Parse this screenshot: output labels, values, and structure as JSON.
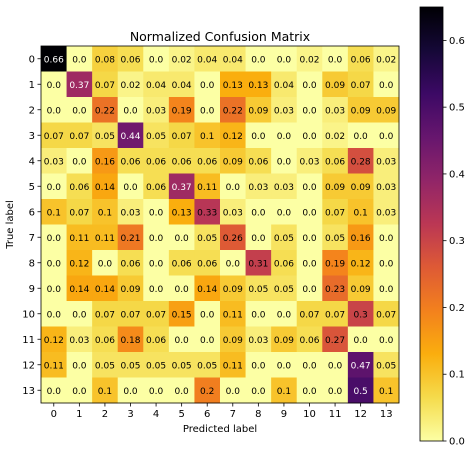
{
  "chart_data": {
    "type": "heatmap",
    "title": "Normalized Confusion Matrix",
    "xlabel": "Predicted label",
    "ylabel": "True label",
    "x_categories": [
      "0",
      "1",
      "2",
      "3",
      "4",
      "5",
      "6",
      "7",
      "8",
      "9",
      "10",
      "11",
      "12",
      "13"
    ],
    "y_categories": [
      "0",
      "1",
      "2",
      "3",
      "4",
      "5",
      "6",
      "7",
      "8",
      "9",
      "10",
      "11",
      "12",
      "13"
    ],
    "matrix": [
      [
        "0.66",
        "0.0",
        "0.08",
        "0.06",
        "0.0",
        "0.02",
        "0.04",
        "0.04",
        "0.0",
        "0.0",
        "0.02",
        "0.0",
        "0.06",
        "0.02"
      ],
      [
        "0.0",
        "0.37",
        "0.07",
        "0.02",
        "0.04",
        "0.04",
        "0.0",
        "0.13",
        "0.13",
        "0.04",
        "0.0",
        "0.09",
        "0.07",
        "0.0"
      ],
      [
        "0.0",
        "0.0",
        "0.22",
        "0.0",
        "0.03",
        "0.19",
        "0.0",
        "0.22",
        "0.09",
        "0.03",
        "0.0",
        "0.03",
        "0.09",
        "0.09"
      ],
      [
        "0.07",
        "0.07",
        "0.05",
        "0.44",
        "0.05",
        "0.07",
        "0.1",
        "0.12",
        "0.0",
        "0.0",
        "0.0",
        "0.02",
        "0.0",
        "0.0"
      ],
      [
        "0.03",
        "0.0",
        "0.16",
        "0.06",
        "0.06",
        "0.06",
        "0.06",
        "0.09",
        "0.06",
        "0.0",
        "0.03",
        "0.06",
        "0.28",
        "0.03"
      ],
      [
        "0.0",
        "0.06",
        "0.14",
        "0.0",
        "0.06",
        "0.37",
        "0.11",
        "0.0",
        "0.03",
        "0.03",
        "0.0",
        "0.09",
        "0.09",
        "0.03"
      ],
      [
        "0.1",
        "0.07",
        "0.1",
        "0.03",
        "0.0",
        "0.13",
        "0.33",
        "0.03",
        "0.0",
        "0.0",
        "0.0",
        "0.07",
        "0.1",
        "0.03"
      ],
      [
        "0.0",
        "0.11",
        "0.11",
        "0.21",
        "0.0",
        "0.0",
        "0.05",
        "0.26",
        "0.0",
        "0.05",
        "0.0",
        "0.05",
        "0.16",
        "0.0"
      ],
      [
        "0.0",
        "0.12",
        "0.0",
        "0.06",
        "0.0",
        "0.06",
        "0.06",
        "0.0",
        "0.31",
        "0.06",
        "0.0",
        "0.19",
        "0.12",
        "0.0"
      ],
      [
        "0.0",
        "0.14",
        "0.14",
        "0.09",
        "0.0",
        "0.0",
        "0.14",
        "0.09",
        "0.05",
        "0.05",
        "0.0",
        "0.23",
        "0.09",
        "0.0"
      ],
      [
        "0.0",
        "0.0",
        "0.07",
        "0.07",
        "0.07",
        "0.15",
        "0.0",
        "0.11",
        "0.0",
        "0.0",
        "0.07",
        "0.07",
        "0.3",
        "0.07"
      ],
      [
        "0.12",
        "0.03",
        "0.06",
        "0.18",
        "0.06",
        "0.0",
        "0.0",
        "0.09",
        "0.03",
        "0.09",
        "0.06",
        "0.27",
        "0.0",
        "0.0"
      ],
      [
        "0.11",
        "0.0",
        "0.05",
        "0.05",
        "0.05",
        "0.05",
        "0.05",
        "0.11",
        "0.0",
        "0.0",
        "0.0",
        "0.0",
        "0.47",
        "0.05"
      ],
      [
        "0.0",
        "0.0",
        "0.1",
        "0.0",
        "0.0",
        "0.0",
        "0.2",
        "0.0",
        "0.0",
        "0.1",
        "0.0",
        "0.0",
        "0.5",
        "0.1"
      ]
    ],
    "colorbar": {
      "colormap": "inferno_r",
      "range": [
        0.0,
        0.65
      ],
      "ticks": [
        0.0,
        0.1,
        0.2,
        0.3,
        0.4,
        0.5,
        0.6
      ],
      "tick_labels": [
        "0.0",
        "0.1",
        "0.2",
        "0.3",
        "0.4",
        "0.5",
        "0.6"
      ]
    },
    "grid": false,
    "text_threshold": 0.33
  }
}
